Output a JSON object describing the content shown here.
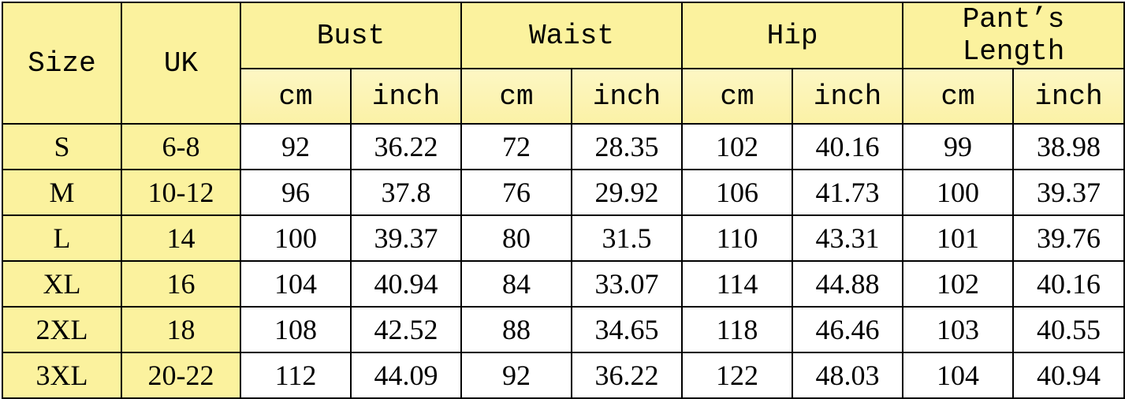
{
  "header": {
    "size": "Size",
    "uk": "UK",
    "groups": [
      "Bust",
      "Waist",
      "Hip",
      "Pant’s Length"
    ],
    "units": [
      "cm",
      "inch"
    ]
  },
  "colors": {
    "header_yellow": "#fbf29e",
    "border": "#000000"
  },
  "rows": [
    [
      "S",
      "6-8",
      "92",
      "36.22",
      "72",
      "28.35",
      "102",
      "40.16",
      "99",
      "38.98"
    ],
    [
      "M",
      "10-12",
      "96",
      "37.8",
      "76",
      "29.92",
      "106",
      "41.73",
      "100",
      "39.37"
    ],
    [
      "L",
      "14",
      "100",
      "39.37",
      "80",
      "31.5",
      "110",
      "43.31",
      "101",
      "39.76"
    ],
    [
      "XL",
      "16",
      "104",
      "40.94",
      "84",
      "33.07",
      "114",
      "44.88",
      "102",
      "40.16"
    ],
    [
      "2XL",
      "18",
      "108",
      "42.52",
      "88",
      "34.65",
      "118",
      "46.46",
      "103",
      "40.55"
    ],
    [
      "3XL",
      "20-22",
      "112",
      "44.09",
      "92",
      "36.22",
      "122",
      "48.03",
      "104",
      "40.94"
    ]
  ]
}
